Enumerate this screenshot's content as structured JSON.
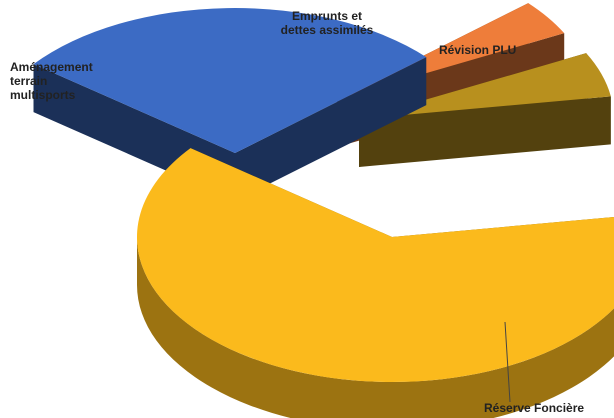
{
  "chart_data": {
    "type": "pie",
    "style": "3d-exploded",
    "title": "",
    "legend": "none",
    "slices": [
      {
        "label": "Réserve Foncière",
        "value": 63,
        "color": "#FBBA1C"
      },
      {
        "label": "Aménagement terrain multisports",
        "value": 28,
        "color": "#3C6BC4"
      },
      {
        "label": "Emprunts et dettes assimilés",
        "value": 4,
        "color": "#EE7D3A"
      },
      {
        "label": "Révision PLU",
        "value": 5,
        "color": "#B8901E"
      }
    ],
    "labels": {
      "amenagement": [
        "Aménagement",
        "terrain",
        "multisports"
      ],
      "emprunts": [
        "Emprunts et",
        "dettes assimilés"
      ],
      "revision": "Révision PLU",
      "reserve": "Réserve Foncière"
    }
  }
}
